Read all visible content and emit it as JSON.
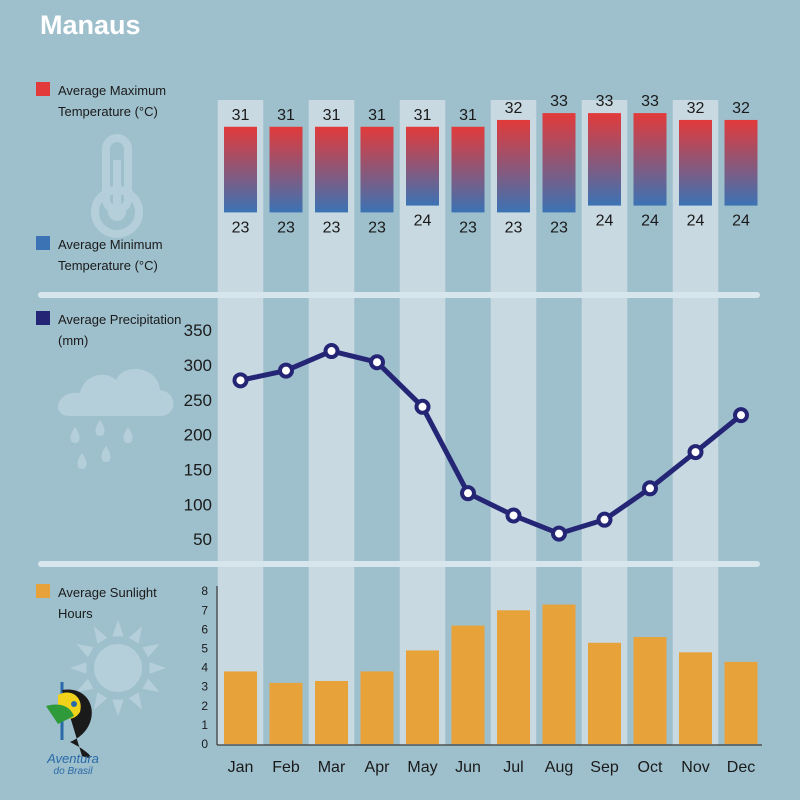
{
  "title": "Manaus",
  "colors": {
    "background": "#9ebfcc",
    "column_band": "#c9d9e2",
    "max_temp": "#e23a3a",
    "min_temp": "#3b73b4",
    "precipitation": "#252575",
    "sunlight": "#e8a23a",
    "divider": "#d7e5ec"
  },
  "legends": {
    "max_temp": "Average Maximum Temperature (°C)",
    "min_temp": "Average Minimum Temperature (°C)",
    "precipitation": "Average Precipitation (mm)",
    "sunlight": "Average Sunlight Hours"
  },
  "logo": {
    "line1": "Aventura",
    "line2": "do Brasil"
  },
  "icons": [
    "thermometer-icon",
    "rain-cloud-icon",
    "sun-icon",
    "parrot-logo-icon"
  ],
  "chart_data": [
    {
      "type": "bar",
      "title": "",
      "categories": [
        "Jan",
        "Feb",
        "Mar",
        "Apr",
        "May",
        "Jun",
        "Jul",
        "Aug",
        "Sep",
        "Oct",
        "Nov",
        "Dec"
      ],
      "series": [
        {
          "name": "Average Maximum Temperature (°C)",
          "values": [
            31,
            31,
            31,
            31,
            31,
            31,
            32,
            33,
            33,
            33,
            32,
            32
          ]
        },
        {
          "name": "Average Minimum Temperature (°C)",
          "values": [
            23,
            23,
            23,
            23,
            24,
            23,
            23,
            23,
            24,
            24,
            24,
            24
          ]
        }
      ]
    },
    {
      "type": "line",
      "title": "",
      "categories": [
        "Jan",
        "Feb",
        "Mar",
        "Apr",
        "May",
        "Jun",
        "Jul",
        "Aug",
        "Sep",
        "Oct",
        "Nov",
        "Dec"
      ],
      "series": [
        {
          "name": "Average Precipitation (mm)",
          "values": [
            278,
            292,
            320,
            304,
            240,
            116,
            84,
            58,
            78,
            123,
            175,
            228
          ]
        }
      ],
      "yticks": [
        50,
        100,
        150,
        200,
        250,
        300,
        350
      ],
      "ylim": [
        50,
        350
      ],
      "grid": false
    },
    {
      "type": "bar",
      "title": "",
      "categories": [
        "Jan",
        "Feb",
        "Mar",
        "Apr",
        "May",
        "Jun",
        "Jul",
        "Aug",
        "Sep",
        "Oct",
        "Nov",
        "Dec"
      ],
      "series": [
        {
          "name": "Average Sunlight Hours",
          "values": [
            3.8,
            3.2,
            3.3,
            3.8,
            4.9,
            6.2,
            7.0,
            7.3,
            5.3,
            5.6,
            4.8,
            4.3
          ]
        }
      ],
      "yticks": [
        0,
        1,
        2,
        3,
        4,
        5,
        6,
        7,
        8
      ],
      "ylim": [
        0,
        8
      ],
      "grid": false
    }
  ]
}
